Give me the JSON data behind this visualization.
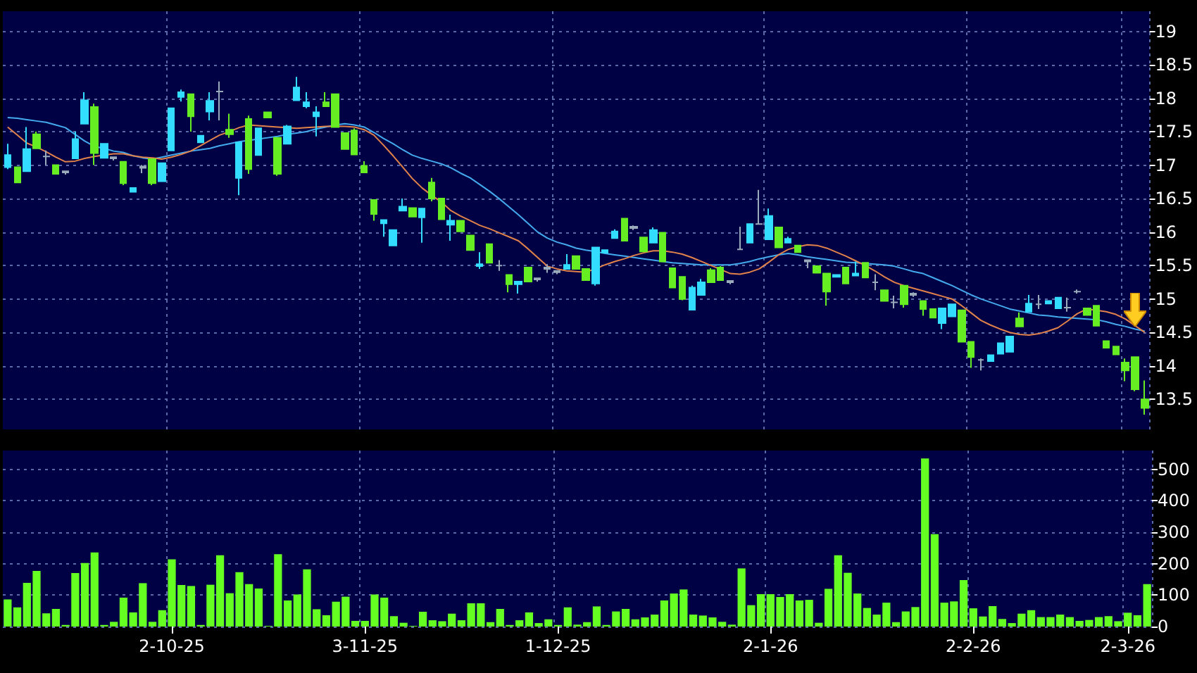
{
  "chart_data": [
    {
      "type": "candlestick",
      "categories": [
        null,
        null,
        null,
        null,
        null,
        null,
        null,
        null,
        null,
        null,
        null,
        null,
        null,
        null,
        null,
        null,
        null,
        null,
        null,
        null,
        null,
        null,
        null,
        null,
        null,
        null,
        null,
        null,
        null,
        null,
        null,
        null,
        null,
        null,
        null,
        null,
        null,
        null,
        null,
        null,
        null,
        null,
        null,
        null,
        null,
        null,
        null,
        null,
        null,
        null,
        null,
        null,
        null,
        null,
        null,
        null,
        null,
        null,
        null,
        null,
        null,
        null,
        null,
        null,
        null,
        null,
        null,
        null,
        null,
        null,
        null,
        null,
        null,
        null,
        null,
        null,
        null,
        null,
        null,
        null,
        null,
        null,
        null,
        null,
        null,
        null,
        null,
        null,
        null,
        null,
        null,
        null,
        null,
        null,
        null,
        null,
        null,
        null,
        null,
        null,
        null,
        null,
        null,
        null,
        null,
        null,
        null,
        null,
        null,
        null,
        null,
        null,
        null,
        null,
        null,
        null,
        null,
        null,
        null
      ],
      "ohlc": [
        [
          16.97,
          17.32,
          16.94,
          17.15
        ],
        [
          16.97,
          16.97,
          16.74,
          16.74
        ],
        [
          16.91,
          17.57,
          16.91,
          17.24
        ],
        [
          17.46,
          17.5,
          17.25,
          17.25
        ],
        [
          17.13,
          17.22,
          17.0,
          17.13
        ],
        [
          17.0,
          17.0,
          16.87,
          16.87
        ],
        [
          16.89,
          16.92,
          16.86,
          16.91
        ],
        [
          17.1,
          17.5,
          17.1,
          17.39
        ],
        [
          17.62,
          18.09,
          17.62,
          17.97
        ],
        [
          17.87,
          17.92,
          17.0,
          17.18
        ],
        [
          17.11,
          17.32,
          17.11,
          17.32
        ],
        [
          17.1,
          17.13,
          17.07,
          17.12
        ],
        [
          17.05,
          17.05,
          16.7,
          16.73
        ],
        [
          16.6,
          16.66,
          16.6,
          16.66
        ],
        [
          16.96,
          17.0,
          16.88,
          16.98
        ],
        [
          17.09,
          17.1,
          16.7,
          16.73
        ],
        [
          16.76,
          17.03,
          16.76,
          17.03
        ],
        [
          17.22,
          17.85,
          17.22,
          17.85
        ],
        [
          18.02,
          18.13,
          17.95,
          18.09
        ],
        [
          18.06,
          18.06,
          17.5,
          17.73
        ],
        [
          17.34,
          17.44,
          17.34,
          17.44
        ],
        [
          17.8,
          18.09,
          17.67,
          17.96
        ],
        [
          18.1,
          18.25,
          17.67,
          18.1
        ],
        [
          17.53,
          17.77,
          17.41,
          17.46
        ],
        [
          16.81,
          17.34,
          16.55,
          17.34
        ],
        [
          17.69,
          17.74,
          16.87,
          16.94
        ],
        [
          17.15,
          17.55,
          17.15,
          17.55
        ],
        [
          17.79,
          17.79,
          17.71,
          17.71
        ],
        [
          17.41,
          17.41,
          16.84,
          16.87
        ],
        [
          17.32,
          17.6,
          17.32,
          17.58
        ],
        [
          17.97,
          18.32,
          17.97,
          18.16
        ],
        [
          17.88,
          18.09,
          17.85,
          17.94
        ],
        [
          17.73,
          17.88,
          17.43,
          17.79
        ],
        [
          17.94,
          18.09,
          17.88,
          17.88
        ],
        [
          18.06,
          18.06,
          17.57,
          17.57
        ],
        [
          17.48,
          17.48,
          17.24,
          17.24
        ],
        [
          17.52,
          17.55,
          17.16,
          17.16
        ],
        [
          16.99,
          17.06,
          16.89,
          16.89
        ],
        [
          16.48,
          16.48,
          16.17,
          16.27
        ],
        [
          16.13,
          16.18,
          15.93,
          16.18
        ],
        [
          15.8,
          16.03,
          15.8,
          16.03
        ],
        [
          16.32,
          16.5,
          16.32,
          16.38
        ],
        [
          16.36,
          16.36,
          16.23,
          16.23
        ],
        [
          16.22,
          16.35,
          15.84,
          16.35
        ],
        [
          16.74,
          16.81,
          16.46,
          16.5
        ],
        [
          16.5,
          16.5,
          16.19,
          16.19
        ],
        [
          16.11,
          16.26,
          15.87,
          16.17
        ],
        [
          16.17,
          16.17,
          16.01,
          16.01
        ],
        [
          15.95,
          15.95,
          15.73,
          15.73
        ],
        [
          15.49,
          15.7,
          15.45,
          15.52
        ],
        [
          15.82,
          15.82,
          15.54,
          15.54
        ],
        [
          15.5,
          15.58,
          15.42,
          15.5
        ],
        [
          15.36,
          15.36,
          15.1,
          15.22
        ],
        [
          15.22,
          15.26,
          15.08,
          15.26
        ],
        [
          15.47,
          15.47,
          15.26,
          15.26
        ],
        [
          15.29,
          15.32,
          15.26,
          15.31
        ],
        [
          15.45,
          15.52,
          15.39,
          15.47
        ],
        [
          15.4,
          15.43,
          15.37,
          15.42
        ],
        [
          15.45,
          15.67,
          15.45,
          15.51
        ],
        [
          15.64,
          15.64,
          15.45,
          15.45
        ],
        [
          15.45,
          15.45,
          15.28,
          15.28
        ],
        [
          15.23,
          15.77,
          15.2,
          15.77
        ],
        [
          15.69,
          15.73,
          15.69,
          15.73
        ],
        [
          15.91,
          16.04,
          15.91,
          16.01
        ],
        [
          16.2,
          16.2,
          15.87,
          15.87
        ],
        [
          16.06,
          16.1,
          16.03,
          16.08
        ],
        [
          15.92,
          15.92,
          15.71,
          15.71
        ],
        [
          15.84,
          16.07,
          15.84,
          16.03
        ],
        [
          15.99,
          15.99,
          15.56,
          15.56
        ],
        [
          15.46,
          15.46,
          15.17,
          15.17
        ],
        [
          15.33,
          15.33,
          14.98,
          15.0
        ],
        [
          14.84,
          15.2,
          14.84,
          15.17
        ],
        [
          15.06,
          15.3,
          15.06,
          15.25
        ],
        [
          15.43,
          15.46,
          15.25,
          15.25
        ],
        [
          15.47,
          15.49,
          15.28,
          15.28
        ],
        [
          15.25,
          15.28,
          15.22,
          15.27
        ],
        [
          15.74,
          16.08,
          15.74,
          15.74
        ],
        [
          15.84,
          16.12,
          15.84,
          16.12
        ],
        [
          16.12,
          16.63,
          16.12,
          16.12
        ],
        [
          15.89,
          16.35,
          15.89,
          16.24
        ],
        [
          16.07,
          16.07,
          15.77,
          15.77
        ],
        [
          15.84,
          15.93,
          15.84,
          15.9
        ],
        [
          15.8,
          15.8,
          15.7,
          15.7
        ],
        [
          15.56,
          15.58,
          15.46,
          15.58
        ],
        [
          15.49,
          15.49,
          15.39,
          15.39
        ],
        [
          15.38,
          15.38,
          14.9,
          15.11
        ],
        [
          15.33,
          15.36,
          15.33,
          15.36
        ],
        [
          15.47,
          15.47,
          15.23,
          15.23
        ],
        [
          15.35,
          15.56,
          15.35,
          15.38
        ],
        [
          15.54,
          15.54,
          15.32,
          15.32
        ],
        [
          15.25,
          15.37,
          15.13,
          15.25
        ],
        [
          15.13,
          15.13,
          14.97,
          14.97
        ],
        [
          14.95,
          15.05,
          14.86,
          14.95
        ],
        [
          15.2,
          15.2,
          14.87,
          14.92
        ],
        [
          15.06,
          15.1,
          15.03,
          15.08
        ],
        [
          14.97,
          14.97,
          14.75,
          14.85
        ],
        [
          14.85,
          14.85,
          14.72,
          14.72
        ],
        [
          14.64,
          14.86,
          14.55,
          14.86
        ],
        [
          14.74,
          14.92,
          14.74,
          14.92
        ],
        [
          14.83,
          14.83,
          14.36,
          14.36
        ],
        [
          14.36,
          14.36,
          13.97,
          14.13
        ],
        [
          14.09,
          14.11,
          13.93,
          14.09
        ],
        [
          14.07,
          14.16,
          14.07,
          14.16
        ],
        [
          14.18,
          14.34,
          14.18,
          14.34
        ],
        [
          14.21,
          14.44,
          14.21,
          14.44
        ],
        [
          14.71,
          14.8,
          14.59,
          14.59
        ],
        [
          14.81,
          15.06,
          14.81,
          14.93
        ],
        [
          14.92,
          15.06,
          14.85,
          14.92
        ],
        [
          14.93,
          14.97,
          14.93,
          14.97
        ],
        [
          14.86,
          15.02,
          14.86,
          15.02
        ],
        [
          14.87,
          15.02,
          14.81,
          14.87
        ],
        [
          15.11,
          15.14,
          15.08,
          15.11
        ],
        [
          14.86,
          14.86,
          14.76,
          14.76
        ],
        [
          14.9,
          14.9,
          14.6,
          14.6
        ],
        [
          14.37,
          14.37,
          14.27,
          14.27
        ],
        [
          14.29,
          14.29,
          14.17,
          14.17
        ],
        [
          14.05,
          14.11,
          13.77,
          13.93
        ],
        [
          14.13,
          14.13,
          13.62,
          13.65
        ],
        [
          13.5,
          13.78,
          13.27,
          13.37
        ]
      ],
      "colors": [
        "#33ddff",
        "#66ee22",
        "#33ddff",
        "#66ee22",
        "#99aabb",
        "#66ee22",
        "#99aabb",
        "#33ddff",
        "#33ddff",
        "#66ee22",
        "#33ddff",
        "#99aabb",
        "#66ee22",
        "#33ddff",
        "#99aabb",
        "#66ee22",
        "#33ddff",
        "#33ddff",
        "#33ddff",
        "#66ee22",
        "#33ddff",
        "#33ddff",
        "#99aabb",
        "#66ee22",
        "#33ddff",
        "#66ee22",
        "#33ddff",
        "#66ee22",
        "#66ee22",
        "#33ddff",
        "#33ddff",
        "#33ddff",
        "#33ddff",
        "#66ee22",
        "#66ee22",
        "#66ee22",
        "#66ee22",
        "#66ee22",
        "#66ee22",
        "#33ddff",
        "#33ddff",
        "#33ddff",
        "#66ee22",
        "#33ddff",
        "#66ee22",
        "#66ee22",
        "#33ddff",
        "#66ee22",
        "#66ee22",
        "#33ddff",
        "#66ee22",
        "#99aabb",
        "#66ee22",
        "#33ddff",
        "#66ee22",
        "#99aabb",
        "#99aabb",
        "#99aabb",
        "#33ddff",
        "#66ee22",
        "#66ee22",
        "#33ddff",
        "#33ddff",
        "#33ddff",
        "#66ee22",
        "#99aabb",
        "#66ee22",
        "#33ddff",
        "#66ee22",
        "#66ee22",
        "#66ee22",
        "#33ddff",
        "#33ddff",
        "#66ee22",
        "#66ee22",
        "#99aabb",
        "#99aabb",
        "#33ddff",
        "#99aabb",
        "#33ddff",
        "#66ee22",
        "#33ddff",
        "#66ee22",
        "#99aabb",
        "#66ee22",
        "#66ee22",
        "#33ddff",
        "#66ee22",
        "#33ddff",
        "#66ee22",
        "#99aabb",
        "#66ee22",
        "#99aabb",
        "#66ee22",
        "#99aabb",
        "#66ee22",
        "#66ee22",
        "#33ddff",
        "#33ddff",
        "#66ee22",
        "#66ee22",
        "#99aabb",
        "#33ddff",
        "#33ddff",
        "#33ddff",
        "#66ee22",
        "#33ddff",
        "#99aabb",
        "#33ddff",
        "#33ddff",
        "#99aabb",
        "#99aabb",
        "#66ee22",
        "#66ee22",
        "#66ee22",
        "#66ee22",
        "#66ee22",
        "#66ee22",
        "#66ee22"
      ],
      "series": [
        {
          "type": "line",
          "color": "#e0824a",
          "values": [
            17.57,
            17.45,
            17.33,
            17.27,
            17.2,
            17.12,
            17.05,
            17.06,
            17.1,
            17.13,
            17.15,
            17.17,
            17.17,
            17.14,
            17.12,
            17.11,
            17.09,
            17.12,
            17.16,
            17.21,
            17.29,
            17.37,
            17.45,
            17.5,
            17.56,
            17.6,
            17.59,
            17.58,
            17.57,
            17.56,
            17.55,
            17.56,
            17.57,
            17.58,
            17.58,
            17.58,
            17.57,
            17.53,
            17.45,
            17.3,
            17.14,
            16.97,
            16.8,
            16.66,
            16.55,
            16.45,
            16.32,
            16.24,
            16.17,
            16.1,
            16.05,
            15.99,
            15.93,
            15.87,
            15.75,
            15.62,
            15.49,
            15.45,
            15.42,
            15.41,
            15.4,
            15.45,
            15.51,
            15.56,
            15.6,
            15.65,
            15.69,
            15.72,
            15.72,
            15.7,
            15.67,
            15.62,
            15.56,
            15.5,
            15.44,
            15.38,
            15.37,
            15.4,
            15.45,
            15.55,
            15.66,
            15.74,
            15.78,
            15.81,
            15.8,
            15.76,
            15.7,
            15.64,
            15.57,
            15.5,
            15.42,
            15.33,
            15.25,
            15.2,
            15.16,
            15.12,
            15.08,
            15.04,
            15.0,
            14.9,
            14.79,
            14.68,
            14.61,
            14.55,
            14.5,
            14.47,
            14.46,
            14.48,
            14.52,
            14.57,
            14.67,
            14.78,
            14.85,
            14.83,
            14.81,
            14.77,
            14.7,
            14.6,
            14.5
          ]
        },
        {
          "type": "line",
          "color": "#44aaee",
          "values": [
            17.71,
            17.7,
            17.68,
            17.66,
            17.64,
            17.6,
            17.56,
            17.46,
            17.36,
            17.28,
            17.25,
            17.21,
            17.19,
            17.14,
            17.11,
            17.09,
            17.12,
            17.15,
            17.18,
            17.21,
            17.23,
            17.25,
            17.29,
            17.32,
            17.35,
            17.37,
            17.39,
            17.41,
            17.43,
            17.46,
            17.48,
            17.5,
            17.54,
            17.57,
            17.6,
            17.62,
            17.6,
            17.57,
            17.49,
            17.4,
            17.32,
            17.23,
            17.15,
            17.1,
            17.06,
            17.02,
            16.96,
            16.88,
            16.81,
            16.71,
            16.61,
            16.5,
            16.38,
            16.26,
            16.13,
            16.0,
            15.91,
            15.85,
            15.81,
            15.76,
            15.73,
            15.71,
            15.68,
            15.66,
            15.64,
            15.62,
            15.6,
            15.58,
            15.56,
            15.54,
            15.53,
            15.52,
            15.51,
            15.51,
            15.51,
            15.51,
            15.53,
            15.56,
            15.6,
            15.63,
            15.66,
            15.68,
            15.66,
            15.63,
            15.61,
            15.59,
            15.57,
            15.55,
            15.54,
            15.53,
            15.52,
            15.51,
            15.49,
            15.45,
            15.41,
            15.38,
            15.32,
            15.26,
            15.2,
            15.13,
            15.06,
            15.0,
            14.95,
            14.9,
            14.85,
            14.82,
            14.79,
            14.76,
            14.75,
            14.73,
            14.72,
            14.71,
            14.7,
            14.69,
            14.66,
            14.62,
            14.59,
            14.55,
            14.52
          ]
        }
      ],
      "ylim": [
        13.05,
        19.3
      ],
      "yticks": [
        13.5,
        14,
        14.5,
        15,
        15.5,
        16,
        16.5,
        17,
        17.5,
        18,
        18.5,
        19
      ],
      "grid": true,
      "tick_labels": "y"
    },
    {
      "type": "bar",
      "categories": [
        null,
        null,
        null,
        null,
        null,
        null,
        null,
        null,
        null,
        null,
        null,
        null,
        null,
        null,
        null,
        null,
        null,
        "2-10-25",
        null,
        null,
        null,
        null,
        null,
        null,
        null,
        null,
        null,
        null,
        null,
        null,
        null,
        null,
        null,
        null,
        null,
        null,
        null,
        "3-11-25",
        null,
        null,
        null,
        null,
        null,
        null,
        null,
        null,
        null,
        null,
        null,
        null,
        null,
        null,
        null,
        null,
        null,
        null,
        null,
        "1-12-25",
        null,
        null,
        null,
        null,
        null,
        null,
        null,
        null,
        null,
        null,
        null,
        null,
        null,
        null,
        null,
        null,
        null,
        null,
        null,
        null,
        null,
        "2-1-26",
        null,
        null,
        null,
        null,
        null,
        null,
        null,
        null,
        null,
        null,
        null,
        null,
        null,
        null,
        null,
        null,
        null,
        null,
        null,
        null,
        "2-2-26",
        null,
        null,
        null,
        null,
        null,
        null,
        null,
        null,
        null,
        null,
        null,
        null,
        null,
        null,
        null,
        "2-3-26",
        null,
        null
      ],
      "values": [
        86,
        61,
        139,
        177,
        42,
        56,
        5,
        170,
        202,
        236,
        5,
        15,
        92,
        45,
        138,
        15,
        52,
        214,
        132,
        129,
        5,
        133,
        227,
        106,
        173,
        135,
        121,
        2,
        230,
        83,
        102,
        182,
        55,
        36,
        79,
        95,
        18,
        18,
        102,
        92,
        33,
        12,
        2,
        47,
        20,
        17,
        41,
        20,
        74,
        74,
        14,
        56,
        5,
        20,
        45,
        11,
        23,
        5,
        61,
        6,
        14,
        64,
        5,
        48,
        56,
        23,
        29,
        38,
        83,
        105,
        118,
        38,
        35,
        29,
        15,
        6,
        185,
        68,
        103,
        103,
        94,
        103,
        83,
        85,
        12,
        120,
        227,
        171,
        105,
        59,
        38,
        76,
        14,
        48,
        62,
        535,
        294,
        76,
        80,
        148,
        58,
        32,
        65,
        24,
        11,
        41,
        52,
        30,
        30,
        38,
        30,
        18,
        21,
        30,
        33,
        17,
        44,
        36,
        135
      ],
      "color": "#66ff22",
      "ylim": [
        0,
        560
      ],
      "yticks": [
        0,
        100,
        200,
        300,
        400,
        500
      ],
      "grid": true
    }
  ]
}
